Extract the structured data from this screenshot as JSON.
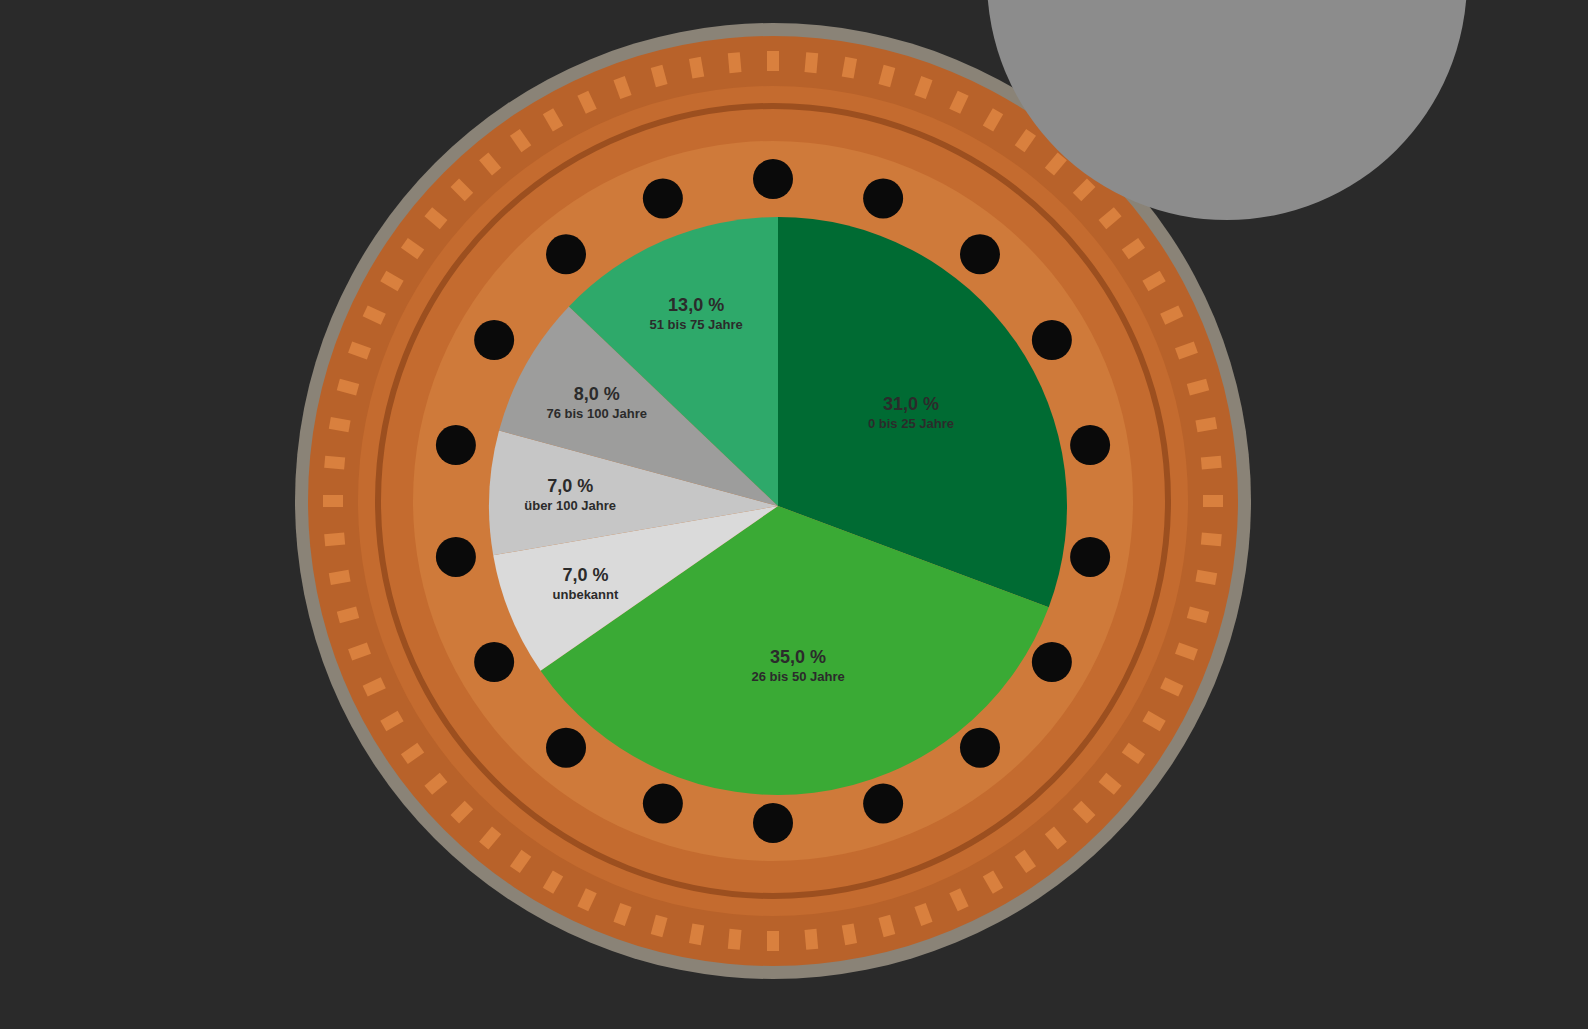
{
  "chart_data": {
    "type": "pie",
    "categories": [
      "0 bis 25 Jahre",
      "26 bis 50 Jahre",
      "unbekannt",
      "über 100 Jahre",
      "76 bis 100 Jahre",
      "51 bis 75 Jahre"
    ],
    "values": [
      31,
      35,
      7,
      7,
      8,
      13
    ],
    "value_labels": [
      "31,0 %",
      "35,0 %",
      "7,0 %",
      "7,0 %",
      "8,0 %",
      "13,0 %"
    ],
    "colors": [
      "#006b33",
      "#3aaa35",
      "#dadada",
      "#c6c6c6",
      "#9d9d9c",
      "#2ea96a"
    ],
    "data_labels": true
  }
}
